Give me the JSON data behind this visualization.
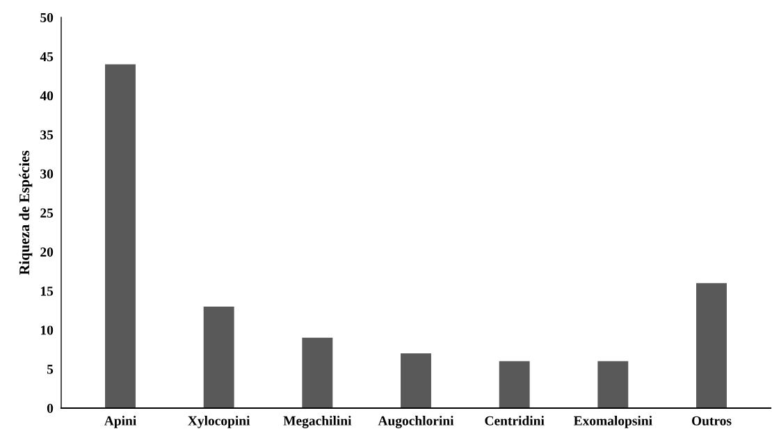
{
  "chart_data": {
    "type": "bar",
    "ylabel": "Riqueza de Espécies",
    "categories": [
      "Apini",
      "Xylocopini",
      "Megachilini",
      "Augochlorini",
      "Centridini",
      "Exomalopsini",
      "Outros"
    ],
    "values": [
      44,
      13,
      9,
      7,
      6,
      6,
      16
    ],
    "color": "#595959",
    "ylim": [
      0,
      50
    ],
    "yticks": [
      0,
      5,
      10,
      15,
      20,
      25,
      30,
      35,
      40,
      45,
      50
    ],
    "grid": false
  }
}
